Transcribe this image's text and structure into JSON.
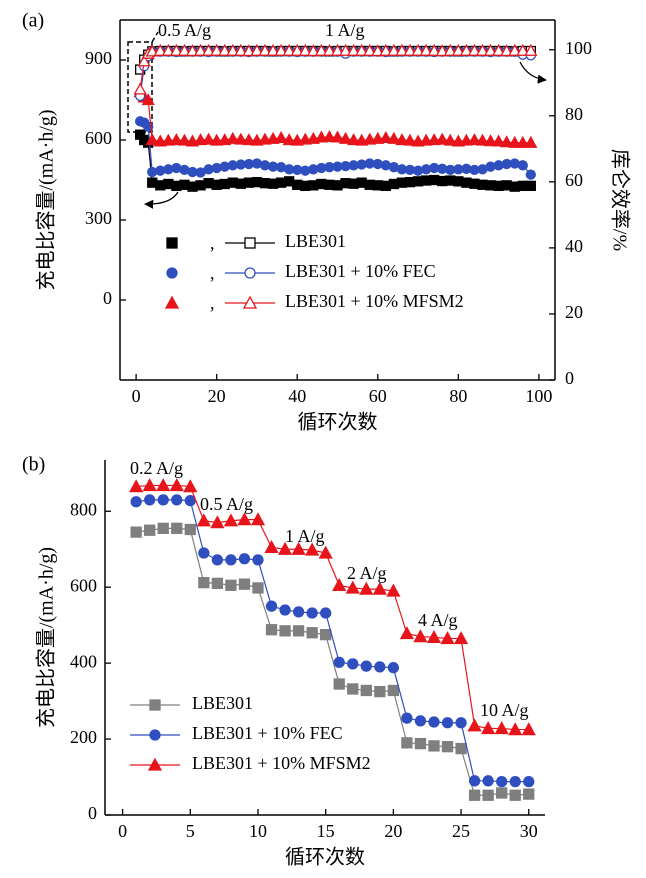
{
  "chart_data": [
    {
      "type": "line",
      "panel_label": "(a)",
      "x_label": "循环次数",
      "y_label": "充电比容量/(mA·h/g)",
      "y2_label": "库仑效率/%",
      "xlim": [
        -4,
        104
      ],
      "xticks": [
        0,
        20,
        40,
        60,
        80,
        100
      ],
      "ylim": [
        -300,
        1050
      ],
      "yticks": [
        0,
        300,
        600,
        900
      ],
      "y2lim": [
        0,
        109
      ],
      "y2ticks": [
        0,
        20,
        40,
        60,
        80,
        100
      ],
      "legend_separator": ",",
      "annotations": [
        "0.5 A/g",
        "1 A/g"
      ],
      "x": [
        1,
        2,
        3,
        4,
        6,
        8,
        10,
        12,
        14,
        16,
        18,
        20,
        22,
        24,
        26,
        28,
        30,
        32,
        34,
        36,
        38,
        40,
        42,
        44,
        46,
        48,
        50,
        52,
        54,
        56,
        58,
        60,
        62,
        64,
        66,
        68,
        70,
        72,
        74,
        76,
        78,
        80,
        82,
        84,
        86,
        88,
        90,
        92,
        94,
        96,
        98
      ],
      "series": [
        {
          "name": "LBE301",
          "color": "#000000",
          "marker": "square",
          "filled": true,
          "values": [
            620,
            600,
            590,
            440,
            430,
            435,
            428,
            432,
            425,
            430,
            438,
            432,
            435,
            440,
            436,
            440,
            442,
            438,
            436,
            440,
            445,
            432,
            428,
            430,
            435,
            432,
            430,
            438,
            436,
            440,
            432,
            430,
            428,
            435,
            440,
            442,
            445,
            448,
            450,
            446,
            448,
            445,
            440,
            436,
            432,
            430,
            428,
            430,
            425,
            428,
            428
          ]
        },
        {
          "name": "LBE301 + 10% FEC",
          "color": "#2f4fbf",
          "marker": "circle",
          "filled": true,
          "values": [
            670,
            665,
            650,
            480,
            485,
            490,
            495,
            488,
            480,
            478,
            490,
            495,
            500,
            505,
            508,
            510,
            512,
            505,
            500,
            498,
            490,
            488,
            485,
            490,
            495,
            498,
            500,
            502,
            505,
            508,
            512,
            510,
            505,
            498,
            490,
            488,
            485,
            490,
            495,
            492,
            488,
            490,
            492,
            488,
            490,
            500,
            505,
            510,
            512,
            505,
            470
          ]
        },
        {
          "name": "LBE301 + 10% MFSM2",
          "color": "#e8141b",
          "marker": "triangle",
          "filled": true,
          "values": [
            780,
            760,
            750,
            600,
            595,
            598,
            600,
            598,
            595,
            600,
            602,
            598,
            600,
            605,
            602,
            600,
            598,
            602,
            605,
            608,
            600,
            598,
            602,
            605,
            610,
            612,
            610,
            605,
            600,
            598,
            602,
            605,
            608,
            605,
            600,
            598,
            595,
            598,
            600,
            602,
            598,
            595,
            598,
            600,
            598,
            596,
            595,
            592,
            590,
            590,
            590
          ]
        },
        {
          "axis": "y2",
          "color": "#000000",
          "marker": "square",
          "filled": false,
          "values": [
            94,
            97,
            98.5,
            99.5,
            99.6,
            99.6,
            99.6,
            99.5,
            99.6,
            99.6,
            99.6,
            99.6,
            99.5,
            99.6,
            99.6,
            99.6,
            99.6,
            99.6,
            99.5,
            99.6,
            99.6,
            99.6,
            99.6,
            99.6,
            99.6,
            99.5,
            99.6,
            99.6,
            99.6,
            99.6,
            99.6,
            99.6,
            99.6,
            99.5,
            99.6,
            99.6,
            99.6,
            99.6,
            99.6,
            99.6,
            99.6,
            99.5,
            99.6,
            99.6,
            99.6,
            99.6,
            99.6,
            99.6,
            99.5,
            99.6,
            99.6
          ]
        },
        {
          "axis": "y2",
          "color": "#2f4fbf",
          "marker": "circle",
          "filled": false,
          "values": [
            86,
            95,
            98,
            99.2,
            99.4,
            99.4,
            99.3,
            99.4,
            99.4,
            99.4,
            99.3,
            99.4,
            99.4,
            99.4,
            99.4,
            99.3,
            99.4,
            99.4,
            99.4,
            99.4,
            99.4,
            99.3,
            99.4,
            99.4,
            99.4,
            99.4,
            99.4,
            98.8,
            99.4,
            99.4,
            99.4,
            99.4,
            99.3,
            99.4,
            99.4,
            99.4,
            99.4,
            99.4,
            99.3,
            99.4,
            99.4,
            99.4,
            99.4,
            99.4,
            99.4,
            99.3,
            99.4,
            99.4,
            99.4,
            98.5,
            98.3
          ]
        },
        {
          "axis": "y2",
          "color": "#e8141b",
          "marker": "triangle",
          "filled": false,
          "values": [
            88,
            96.5,
            98.8,
            99.5,
            99.7,
            99.7,
            99.7,
            99.7,
            99.6,
            99.7,
            99.7,
            99.7,
            99.7,
            99.7,
            99.7,
            99.6,
            99.7,
            99.7,
            99.7,
            99.7,
            99.7,
            99.7,
            99.7,
            99.6,
            99.7,
            99.7,
            99.7,
            99.7,
            99.7,
            99.7,
            99.7,
            99.6,
            99.7,
            99.7,
            99.7,
            99.7,
            99.7,
            99.7,
            99.7,
            99.6,
            99.7,
            99.7,
            99.7,
            99.7,
            99.7,
            99.7,
            99.7,
            99.6,
            99.7,
            99.7,
            99.7
          ]
        }
      ]
    },
    {
      "type": "line",
      "panel_label": "(b)",
      "x_label": "循环次数",
      "y_label": "充电比容量/(mA·h/g)",
      "xlim": [
        -1.3,
        31.2
      ],
      "xticks": [
        0,
        5,
        10,
        15,
        20,
        25,
        30
      ],
      "ylim": [
        0,
        935
      ],
      "yticks": [
        0,
        200,
        400,
        600,
        800
      ],
      "annotations": [
        "0.2 A/g",
        "0.5 A/g",
        "1 A/g",
        "2 A/g",
        "4 A/g",
        "10 A/g"
      ],
      "x": [
        1,
        2,
        3,
        4,
        5,
        6,
        7,
        8,
        9,
        10,
        11,
        12,
        13,
        14,
        15,
        16,
        17,
        18,
        19,
        20,
        21,
        22,
        23,
        24,
        25,
        26,
        27,
        28,
        29,
        30
      ],
      "series": [
        {
          "name": "LBE301",
          "color": "#7f7f7f",
          "marker": "square",
          "filled": true,
          "values": [
            745,
            750,
            755,
            755,
            752,
            612,
            610,
            605,
            608,
            598,
            488,
            485,
            485,
            480,
            475,
            345,
            332,
            328,
            325,
            328,
            190,
            188,
            182,
            180,
            175,
            52,
            52,
            58,
            52,
            55
          ]
        },
        {
          "name": "LBE301 + 10% FEC",
          "color": "#2f4fbf",
          "marker": "circle",
          "filled": true,
          "values": [
            825,
            830,
            830,
            830,
            828,
            690,
            672,
            672,
            675,
            672,
            550,
            540,
            535,
            532,
            532,
            402,
            398,
            392,
            390,
            388,
            255,
            248,
            245,
            243,
            243,
            90,
            90,
            88,
            88,
            88
          ]
        },
        {
          "name": "LBE301 + 10% MFSM2",
          "color": "#e8141b",
          "marker": "triangle",
          "filled": true,
          "values": [
            865,
            868,
            868,
            868,
            865,
            775,
            770,
            775,
            778,
            778,
            705,
            700,
            700,
            698,
            690,
            605,
            598,
            595,
            595,
            590,
            478,
            470,
            468,
            465,
            465,
            235,
            228,
            228,
            225,
            225
          ]
        }
      ]
    }
  ]
}
